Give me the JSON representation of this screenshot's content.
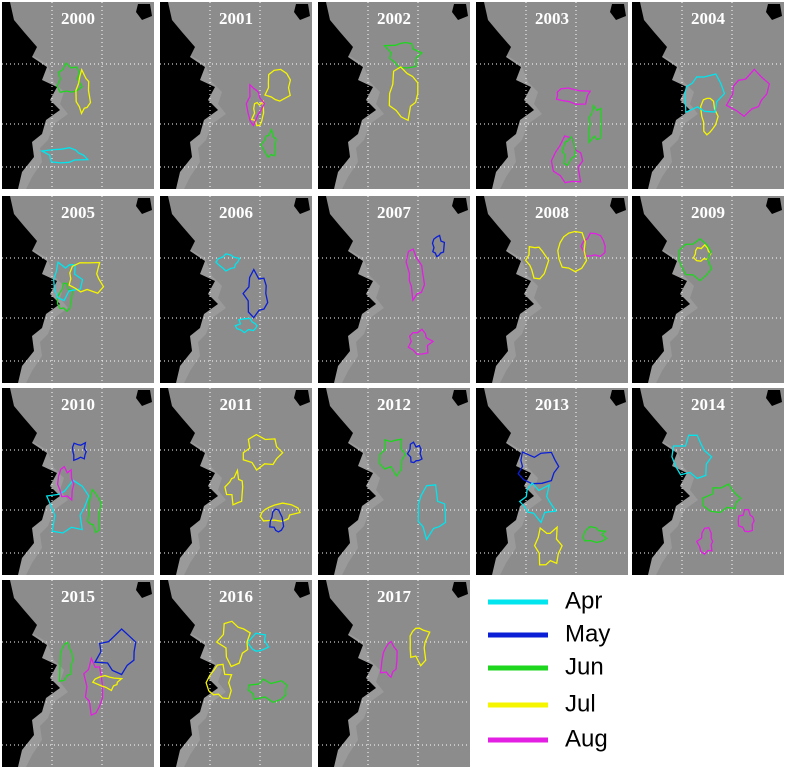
{
  "panels": [
    {
      "title": "2000"
    },
    {
      "title": "2001"
    },
    {
      "title": "2002"
    },
    {
      "title": "2003"
    },
    {
      "title": "2004"
    },
    {
      "title": "2005"
    },
    {
      "title": "2006"
    },
    {
      "title": "2007"
    },
    {
      "title": "2008"
    },
    {
      "title": "2009"
    },
    {
      "title": "2010"
    },
    {
      "title": "2011"
    },
    {
      "title": "2012"
    },
    {
      "title": "2013"
    },
    {
      "title": "2014"
    },
    {
      "title": "2015"
    },
    {
      "title": "2016"
    },
    {
      "title": "2017"
    }
  ],
  "legend": [
    {
      "label": "Apr",
      "color": "#00e5ee"
    },
    {
      "label": "May",
      "color": "#0a1fd6"
    },
    {
      "label": "Jun",
      "color": "#1ed61e"
    },
    {
      "label": "Jul",
      "color": "#f5f500"
    },
    {
      "label": "Aug",
      "color": "#e21fe2"
    }
  ]
}
